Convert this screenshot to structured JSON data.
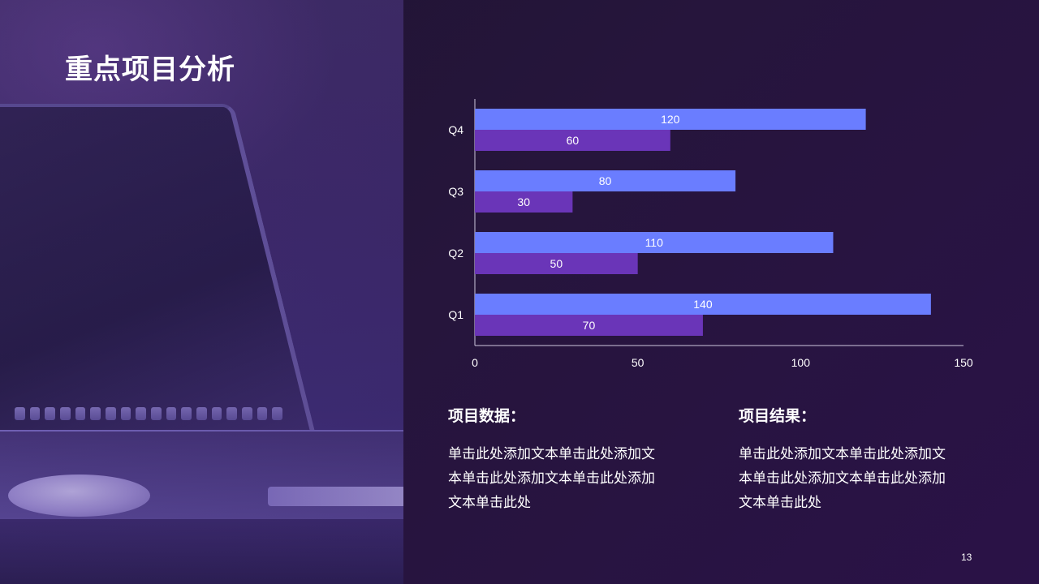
{
  "slide": {
    "title": "重点项目分析",
    "page_number": "13"
  },
  "colors": {
    "series_a": "#6a7dff",
    "series_b": "#6a35b8",
    "axis": "#cfc8de",
    "text": "#ffffff"
  },
  "chart_data": {
    "type": "bar",
    "orientation": "horizontal",
    "categories": [
      "Q1",
      "Q2",
      "Q3",
      "Q4"
    ],
    "series": [
      {
        "values": [
          140,
          110,
          80,
          120
        ]
      },
      {
        "values": [
          70,
          50,
          30,
          60
        ]
      }
    ],
    "xlim": [
      0,
      150
    ],
    "xticks": [
      "0",
      "50",
      "100",
      "150"
    ],
    "data_labels": true,
    "grid": false,
    "title": "",
    "xlabel": "",
    "ylabel": ""
  },
  "sections": [
    {
      "heading": "项目数据：",
      "lines": [
        "单击此处添加文本单击此处添加文",
        "本单击此处添加文本单击此处添加",
        "文本单击此处"
      ]
    },
    {
      "heading": "项目结果：",
      "lines": [
        "单击此处添加文本单击此处添加文",
        "本单击此处添加文本单击此处添加",
        "文本单击此处"
      ]
    }
  ],
  "background_image": {
    "icon": "laptop-photo"
  }
}
